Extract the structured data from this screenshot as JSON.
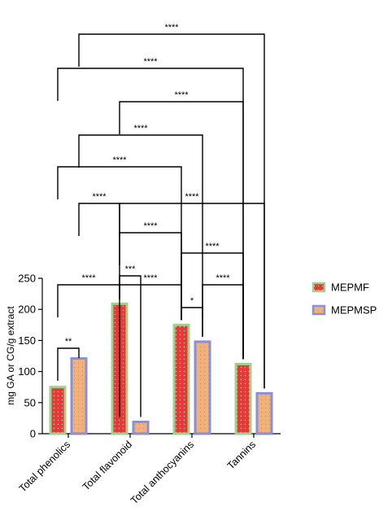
{
  "chart_data": {
    "type": "bar",
    "ylabel": "mg GA or CG/g extract",
    "ylim": [
      0,
      250
    ],
    "yticks": [
      0,
      50,
      100,
      150,
      200,
      250
    ],
    "categories": [
      "Total phenolics",
      "Total flavonoid",
      "Total anthocyanins",
      "Tannins"
    ],
    "series": [
      {
        "name": "MEPMF",
        "values": [
          75,
          209,
          175,
          112
        ]
      },
      {
        "name": "MEPMSP",
        "values": [
          121,
          19,
          148,
          65
        ]
      }
    ],
    "significance": [
      {
        "from": [
          0,
          0
        ],
        "to": [
          0,
          1
        ],
        "label": "**"
      },
      {
        "from": [
          0,
          0
        ],
        "to": [
          1,
          0
        ],
        "label": "****"
      },
      {
        "from": [
          1,
          0
        ],
        "to": [
          1,
          1
        ],
        "label": "***"
      },
      {
        "from": [
          1,
          0
        ],
        "to": [
          2,
          0
        ],
        "label": "****"
      },
      {
        "from": [
          2,
          0
        ],
        "to": [
          2,
          1
        ],
        "label": "*"
      },
      {
        "from": [
          2,
          1
        ],
        "to": [
          3,
          0
        ],
        "label": "****"
      },
      {
        "from": [
          2,
          0
        ],
        "to": [
          3,
          0
        ],
        "label": "****"
      },
      {
        "from": [
          1,
          0
        ],
        "to": [
          2,
          0
        ],
        "label": "****"
      },
      {
        "from": [
          0,
          1
        ],
        "to": [
          1,
          0
        ],
        "label": "****"
      },
      {
        "from": [
          1,
          0
        ],
        "to": [
          3,
          1
        ],
        "label": "****"
      },
      {
        "from": [
          0,
          0
        ],
        "to": [
          2,
          0
        ],
        "label": "****"
      },
      {
        "from": [
          0,
          1
        ],
        "to": [
          2,
          1
        ],
        "label": "****"
      },
      {
        "from": [
          1,
          0
        ],
        "to": [
          3,
          0
        ],
        "label": "****"
      },
      {
        "from": [
          0,
          0
        ],
        "to": [
          3,
          0
        ],
        "label": "****"
      },
      {
        "from": [
          0,
          1
        ],
        "to": [
          3,
          1
        ],
        "label": "****"
      }
    ],
    "legend": {
      "placement": "right"
    },
    "colors": {
      "MEPMF_fill": "#e53935",
      "MEPMF_border": "#9fd18f",
      "MEPMSP_fill": "#f0b27a",
      "MEPMSP_border": "#8a8fd6",
      "axis": "#000000"
    }
  }
}
